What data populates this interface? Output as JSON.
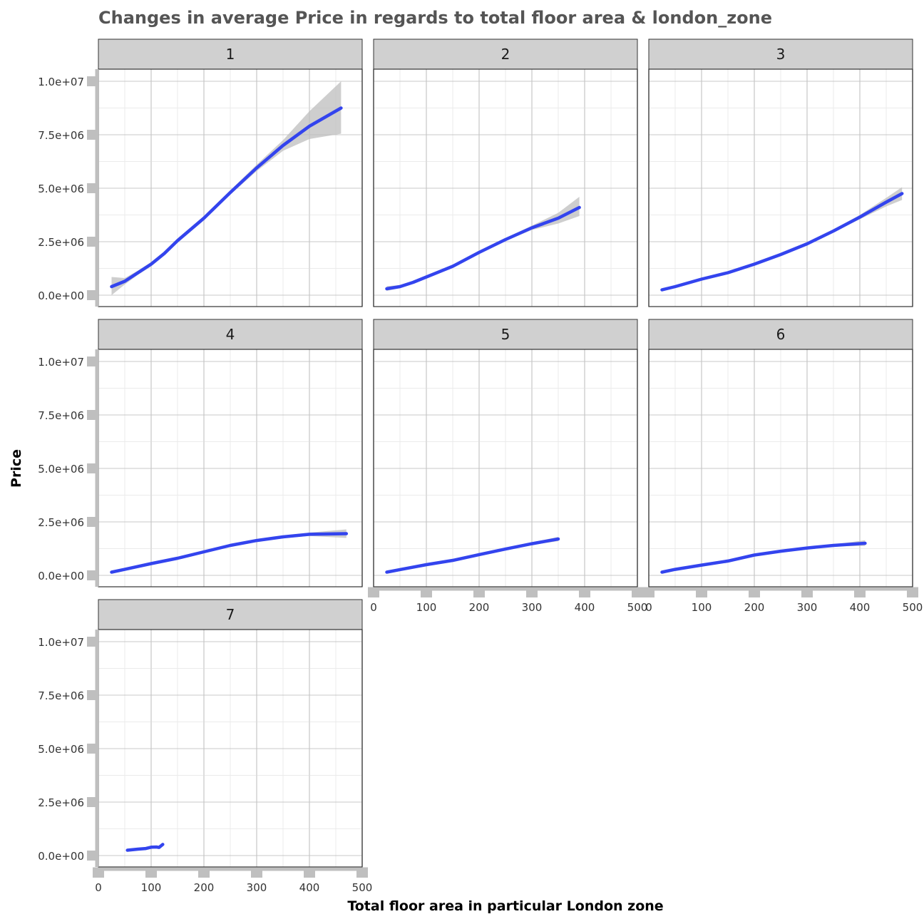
{
  "chart_data": {
    "type": "line",
    "title": "Changes in average Price in regards to total floor area & london_zone",
    "xlabel": "Total floor area in particular London zone",
    "ylabel": "Price",
    "facet_variable": "london_zone",
    "xlim": [
      0,
      500
    ],
    "ylim": [
      0,
      10000000
    ],
    "x_ticks": [
      0,
      100,
      200,
      300,
      400,
      500
    ],
    "x_tick_labels": [
      "0",
      "100",
      "200",
      "300",
      "400",
      "500"
    ],
    "y_ticks": [
      0,
      2500000,
      5000000,
      7500000,
      10000000
    ],
    "y_tick_labels": [
      "0.0e+00",
      "2.5e+06",
      "5.0e+06",
      "7.5e+06",
      "1.0e+07"
    ],
    "grid": true,
    "colors": {
      "line": "#3344ee",
      "ribbon": "#bdbdbd",
      "strip_fill": "#d0d0d0",
      "grid_major": "#c8c8c8",
      "grid_minor": "#ebebeb",
      "axis": "#bfbfbf"
    },
    "facets": [
      {
        "label": "1",
        "series": [
          {
            "x": 25,
            "y": 400000,
            "lo": 0,
            "hi": 850000
          },
          {
            "x": 50,
            "y": 650000,
            "lo": 500000,
            "hi": 800000
          },
          {
            "x": 75,
            "y": 1050000,
            "lo": 950000,
            "hi": 1150000
          },
          {
            "x": 100,
            "y": 1450000,
            "lo": 1350000,
            "hi": 1550000
          },
          {
            "x": 125,
            "y": 1950000,
            "lo": 1850000,
            "hi": 2050000
          },
          {
            "x": 150,
            "y": 2550000,
            "lo": 2450000,
            "hi": 2650000
          },
          {
            "x": 200,
            "y": 3600000,
            "lo": 3500000,
            "hi": 3700000
          },
          {
            "x": 250,
            "y": 4800000,
            "lo": 4700000,
            "hi": 4900000
          },
          {
            "x": 300,
            "y": 5950000,
            "lo": 5800000,
            "hi": 6100000
          },
          {
            "x": 350,
            "y": 7000000,
            "lo": 6750000,
            "hi": 7250000
          },
          {
            "x": 400,
            "y": 7900000,
            "lo": 7300000,
            "hi": 8600000
          },
          {
            "x": 460,
            "y": 8750000,
            "lo": 7550000,
            "hi": 10000000
          }
        ]
      },
      {
        "label": "2",
        "series": [
          {
            "x": 25,
            "y": 300000,
            "lo": 200000,
            "hi": 420000
          },
          {
            "x": 50,
            "y": 400000,
            "lo": 330000,
            "hi": 470000
          },
          {
            "x": 75,
            "y": 600000,
            "lo": 540000,
            "hi": 660000
          },
          {
            "x": 100,
            "y": 850000,
            "lo": 790000,
            "hi": 910000
          },
          {
            "x": 150,
            "y": 1350000,
            "lo": 1290000,
            "hi": 1410000
          },
          {
            "x": 200,
            "y": 2000000,
            "lo": 1940000,
            "hi": 2060000
          },
          {
            "x": 250,
            "y": 2600000,
            "lo": 2530000,
            "hi": 2670000
          },
          {
            "x": 300,
            "y": 3150000,
            "lo": 3050000,
            "hi": 3250000
          },
          {
            "x": 350,
            "y": 3600000,
            "lo": 3350000,
            "hi": 3850000
          },
          {
            "x": 390,
            "y": 4100000,
            "lo": 3700000,
            "hi": 4600000
          }
        ]
      },
      {
        "label": "3",
        "series": [
          {
            "x": 25,
            "y": 250000,
            "lo": 170000,
            "hi": 330000
          },
          {
            "x": 50,
            "y": 400000,
            "lo": 340000,
            "hi": 460000
          },
          {
            "x": 100,
            "y": 750000,
            "lo": 700000,
            "hi": 800000
          },
          {
            "x": 150,
            "y": 1050000,
            "lo": 1000000,
            "hi": 1100000
          },
          {
            "x": 200,
            "y": 1450000,
            "lo": 1400000,
            "hi": 1500000
          },
          {
            "x": 250,
            "y": 1900000,
            "lo": 1850000,
            "hi": 1950000
          },
          {
            "x": 300,
            "y": 2400000,
            "lo": 2350000,
            "hi": 2450000
          },
          {
            "x": 350,
            "y": 3000000,
            "lo": 2940000,
            "hi": 3060000
          },
          {
            "x": 400,
            "y": 3650000,
            "lo": 3550000,
            "hi": 3750000
          },
          {
            "x": 450,
            "y": 4350000,
            "lo": 4150000,
            "hi": 4550000
          },
          {
            "x": 480,
            "y": 4750000,
            "lo": 4450000,
            "hi": 5050000
          }
        ]
      },
      {
        "label": "4",
        "series": [
          {
            "x": 25,
            "y": 150000,
            "lo": 80000,
            "hi": 220000
          },
          {
            "x": 50,
            "y": 280000,
            "lo": 220000,
            "hi": 340000
          },
          {
            "x": 100,
            "y": 550000,
            "lo": 500000,
            "hi": 600000
          },
          {
            "x": 150,
            "y": 800000,
            "lo": 750000,
            "hi": 850000
          },
          {
            "x": 200,
            "y": 1100000,
            "lo": 1050000,
            "hi": 1150000
          },
          {
            "x": 250,
            "y": 1400000,
            "lo": 1350000,
            "hi": 1450000
          },
          {
            "x": 300,
            "y": 1630000,
            "lo": 1580000,
            "hi": 1680000
          },
          {
            "x": 350,
            "y": 1800000,
            "lo": 1740000,
            "hi": 1860000
          },
          {
            "x": 400,
            "y": 1920000,
            "lo": 1840000,
            "hi": 2000000
          },
          {
            "x": 470,
            "y": 1950000,
            "lo": 1750000,
            "hi": 2150000
          }
        ]
      },
      {
        "label": "5",
        "series": [
          {
            "x": 25,
            "y": 150000,
            "lo": 80000,
            "hi": 220000
          },
          {
            "x": 50,
            "y": 270000,
            "lo": 220000,
            "hi": 320000
          },
          {
            "x": 100,
            "y": 500000,
            "lo": 460000,
            "hi": 540000
          },
          {
            "x": 150,
            "y": 700000,
            "lo": 660000,
            "hi": 740000
          },
          {
            "x": 200,
            "y": 970000,
            "lo": 930000,
            "hi": 1010000
          },
          {
            "x": 250,
            "y": 1230000,
            "lo": 1190000,
            "hi": 1270000
          },
          {
            "x": 300,
            "y": 1480000,
            "lo": 1420000,
            "hi": 1540000
          },
          {
            "x": 350,
            "y": 1700000,
            "lo": 1600000,
            "hi": 1800000
          }
        ]
      },
      {
        "label": "6",
        "series": [
          {
            "x": 25,
            "y": 150000,
            "lo": 80000,
            "hi": 220000
          },
          {
            "x": 50,
            "y": 280000,
            "lo": 230000,
            "hi": 330000
          },
          {
            "x": 100,
            "y": 480000,
            "lo": 440000,
            "hi": 520000
          },
          {
            "x": 150,
            "y": 670000,
            "lo": 630000,
            "hi": 710000
          },
          {
            "x": 200,
            "y": 950000,
            "lo": 910000,
            "hi": 990000
          },
          {
            "x": 250,
            "y": 1130000,
            "lo": 1090000,
            "hi": 1170000
          },
          {
            "x": 300,
            "y": 1280000,
            "lo": 1240000,
            "hi": 1320000
          },
          {
            "x": 350,
            "y": 1400000,
            "lo": 1350000,
            "hi": 1450000
          },
          {
            "x": 410,
            "y": 1500000,
            "lo": 1380000,
            "hi": 1640000
          }
        ]
      },
      {
        "label": "7",
        "series": [
          {
            "x": 55,
            "y": 250000,
            "lo": 220000,
            "hi": 280000
          },
          {
            "x": 75,
            "y": 300000,
            "lo": 270000,
            "hi": 330000
          },
          {
            "x": 90,
            "y": 330000,
            "lo": 300000,
            "hi": 360000
          },
          {
            "x": 100,
            "y": 390000,
            "lo": 360000,
            "hi": 420000
          },
          {
            "x": 110,
            "y": 400000,
            "lo": 370000,
            "hi": 430000
          },
          {
            "x": 115,
            "y": 380000,
            "lo": 350000,
            "hi": 410000
          },
          {
            "x": 122,
            "y": 520000,
            "lo": 490000,
            "hi": 550000
          }
        ]
      }
    ]
  }
}
